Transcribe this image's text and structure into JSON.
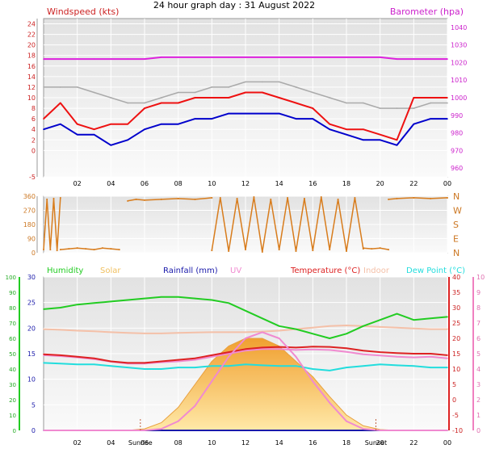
{
  "title": "24 hour graph day : 31 August 2022",
  "colors": {
    "windspeed": "#ee1111",
    "avgwind": "#0000cc",
    "gust_avg": "#aaaaaa",
    "barometer": "#dd22dd",
    "winddir": "#d87c1c",
    "humidity": "#22cc22",
    "solar": "#f0c060",
    "rainfall": "#1a1aaa",
    "uv": "#f08ad0",
    "temperature": "#dd2222",
    "indoor": "#f4c0a8",
    "dewpoint": "#22dddd",
    "axis_left": "#888888",
    "axis_green": "#22cc22",
    "axis_red": "#dd2222",
    "axis_pink": "#f080c0",
    "sunline": "#c06040"
  },
  "x_ticks": [
    "02",
    "04",
    "06",
    "08",
    "10",
    "12",
    "14",
    "16",
    "18",
    "20",
    "22",
    "00"
  ],
  "sun_labels": {
    "sunrise": "Sunrise",
    "sunset": "Sunset"
  },
  "sun_times": {
    "sunrise": 5.75,
    "sunset": 19.75
  },
  "chart_data": [
    {
      "type": "line",
      "title": "24 hour graph day : 31 August 2022",
      "ylabel": "Windspeed (kts)",
      "y2label": "Barometer (hpa)",
      "ylim": [
        -5,
        25
      ],
      "y2lim": [
        955,
        1045
      ],
      "yticks": [
        -5,
        0,
        2,
        4,
        6,
        8,
        10,
        12,
        14,
        16,
        18,
        20,
        22,
        24
      ],
      "y2ticks": [
        960,
        970,
        980,
        990,
        1000,
        1010,
        1020,
        1030,
        1040
      ],
      "x": [
        0,
        1,
        2,
        3,
        4,
        5,
        6,
        7,
        8,
        9,
        10,
        11,
        12,
        13,
        14,
        15,
        16,
        17,
        18,
        19,
        20,
        21,
        22,
        23,
        24
      ],
      "series": [
        {
          "key": "gust",
          "color_key": "windspeed",
          "values": [
            6,
            9,
            5,
            4,
            5,
            5,
            8,
            9,
            9,
            10,
            10,
            10,
            11,
            11,
            10,
            9,
            8,
            5,
            4,
            4,
            3,
            2,
            10,
            10,
            10
          ]
        },
        {
          "key": "avgwind",
          "color_key": "avgwind",
          "values": [
            4,
            5,
            3,
            3,
            1,
            2,
            4,
            5,
            5,
            6,
            6,
            7,
            7,
            7,
            7,
            6,
            6,
            4,
            3,
            2,
            2,
            1,
            5,
            6,
            6
          ]
        },
        {
          "key": "barometer",
          "axis": "y2",
          "color_key": "barometer",
          "values": [
            1022,
            1022,
            1022,
            1022,
            1022,
            1022,
            1022,
            1023,
            1023,
            1023,
            1023,
            1023,
            1023,
            1023,
            1023,
            1023,
            1023,
            1023,
            1023,
            1023,
            1023,
            1022,
            1022,
            1022,
            1022
          ]
        },
        {
          "key": "gust_avg",
          "color_key": "gust_avg",
          "values": [
            12,
            12,
            12,
            11,
            10,
            9,
            9,
            10,
            11,
            11,
            12,
            12,
            13,
            13,
            13,
            12,
            11,
            10,
            9,
            9,
            8,
            8,
            8,
            9,
            9
          ]
        }
      ]
    },
    {
      "type": "scatter",
      "ylim": [
        0,
        360
      ],
      "yticks": [
        0,
        90,
        180,
        270,
        360
      ],
      "y2ticks": [
        "N",
        "W",
        "S",
        "E",
        "N"
      ],
      "segments": [
        {
          "x": [
            0,
            0.2,
            0.4,
            0.6,
            0.8,
            1.0
          ],
          "values": [
            20,
            340,
            20,
            345,
            15,
            350
          ]
        },
        {
          "x": [
            1.0,
            1.5,
            2.0,
            2.5,
            3.0,
            3.5,
            4.0,
            4.5
          ],
          "values": [
            20,
            25,
            30,
            25,
            20,
            30,
            25,
            20
          ]
        },
        {
          "x": [
            5.0,
            5.5,
            6.0,
            7.0,
            8.0,
            9.0,
            10.0
          ],
          "values": [
            330,
            340,
            335,
            340,
            345,
            340,
            350
          ]
        },
        {
          "x": [
            10.0,
            10.5,
            11.0,
            11.5,
            12.0,
            12.5,
            13.0,
            13.5,
            14.0,
            14.5,
            15.0,
            15.5,
            16.0,
            16.5,
            17.0,
            17.5,
            18.0,
            18.5,
            19.0
          ],
          "values": [
            15,
            350,
            10,
            345,
            20,
            355,
            5,
            340,
            20,
            350,
            10,
            345,
            15,
            355,
            20,
            340,
            10,
            350,
            25
          ]
        },
        {
          "x": [
            19.0,
            19.5,
            20.0,
            20.5
          ],
          "values": [
            30,
            25,
            30,
            20
          ]
        },
        {
          "x": [
            20.5,
            21.0,
            22.0,
            23.0,
            24.0
          ],
          "values": [
            340,
            345,
            350,
            345,
            350
          ]
        }
      ]
    },
    {
      "type": "line",
      "legend": [
        "Humidity",
        "Solar",
        "Rainfall (mm)",
        "UV",
        "Temperature (°C)",
        "Indoor",
        "Dew Point (°C)"
      ],
      "ylim_left_outer": [
        0,
        100
      ],
      "yticks_left_outer": [
        0,
        10,
        20,
        30,
        40,
        50,
        60,
        70,
        80,
        90,
        100
      ],
      "ylim_left_inner": [
        0,
        30
      ],
      "yticks_left_inner": [
        0,
        5,
        10,
        15,
        20,
        25,
        30
      ],
      "ylim_right_inner": [
        -10,
        40
      ],
      "yticks_right_inner": [
        -10,
        -5,
        0,
        5,
        10,
        15,
        20,
        25,
        30,
        35,
        40
      ],
      "ylim_right_outer": [
        0,
        10
      ],
      "yticks_right_outer": [
        0,
        1,
        2,
        3,
        4,
        5,
        6,
        7,
        8,
        9,
        10
      ],
      "x": [
        0,
        1,
        2,
        3,
        4,
        5,
        6,
        7,
        8,
        9,
        10,
        11,
        12,
        13,
        14,
        15,
        16,
        17,
        18,
        19,
        20,
        21,
        22,
        23,
        24
      ],
      "series": [
        {
          "key": "humidity",
          "axis": "left_outer",
          "color_key": "humidity",
          "values": [
            79,
            80,
            82,
            83,
            84,
            85,
            86,
            87,
            87,
            86,
            85,
            83,
            78,
            73,
            68,
            66,
            63,
            60,
            63,
            68,
            72,
            76,
            72,
            73,
            74
          ]
        },
        {
          "key": "indoor",
          "axis": "right_inner",
          "color_key": "indoor",
          "values": [
            23,
            22.8,
            22.5,
            22.3,
            22,
            21.8,
            21.6,
            21.6,
            21.8,
            21.9,
            22,
            22,
            22,
            22.2,
            22.5,
            23,
            23.5,
            24,
            24.2,
            24,
            23.7,
            23.5,
            23.2,
            23,
            23
          ]
        },
        {
          "key": "temperature",
          "axis": "right_inner",
          "color_key": "temperature",
          "values": [
            14.8,
            14.5,
            14,
            13.5,
            12.5,
            12,
            12,
            12.5,
            13,
            13.5,
            14.5,
            15.5,
            16.5,
            17,
            17.2,
            17,
            17.3,
            17.2,
            16.8,
            16,
            15.5,
            15.2,
            15,
            15,
            14.5
          ]
        },
        {
          "key": "uv_line",
          "axis": "right_inner",
          "color_key": "uv",
          "values": [
            14.5,
            14.2,
            13.8,
            13.2,
            12.4,
            11.8,
            11.8,
            12.2,
            12.5,
            13,
            14,
            15,
            16,
            16.5,
            16.5,
            16.2,
            16.4,
            16.2,
            15.6,
            14.8,
            14.4,
            14,
            13.8,
            14,
            13.5
          ]
        },
        {
          "key": "dewpoint",
          "axis": "right_inner",
          "color_key": "dewpoint",
          "values": [
            12,
            11.8,
            11.5,
            11.5,
            11,
            10.5,
            10,
            10,
            10.5,
            10.5,
            11,
            11,
            11.5,
            11.2,
            11,
            11,
            10,
            9.5,
            10.5,
            11,
            11.5,
            11.2,
            11,
            10.5,
            10.5
          ]
        },
        {
          "key": "solar",
          "axis": "right_outer",
          "color_key": "solar",
          "fill": true,
          "values": [
            0,
            0,
            0,
            0,
            0,
            0,
            0.1,
            0.5,
            1.5,
            3.0,
            4.5,
            5.5,
            6.0,
            6.0,
            5.5,
            4.5,
            3.5,
            2.2,
            1.0,
            0.3,
            0.05,
            0,
            0,
            0,
            0
          ]
        },
        {
          "key": "uv",
          "axis": "right_outer",
          "color_key": "uv",
          "values": [
            0,
            0,
            0,
            0,
            0,
            0,
            0,
            0.1,
            0.6,
            1.6,
            3.2,
            4.8,
            6.0,
            6.4,
            6.0,
            4.8,
            3.2,
            1.8,
            0.6,
            0.1,
            0,
            0,
            0,
            0,
            0
          ]
        },
        {
          "key": "rainfall",
          "axis": "left_inner",
          "color_key": "rainfall",
          "values": [
            0,
            0,
            0,
            0,
            0,
            0,
            0,
            0,
            0,
            0,
            0,
            0,
            0,
            0,
            0,
            0,
            0,
            0,
            0,
            0,
            0,
            0,
            0,
            0,
            0
          ]
        }
      ]
    }
  ]
}
